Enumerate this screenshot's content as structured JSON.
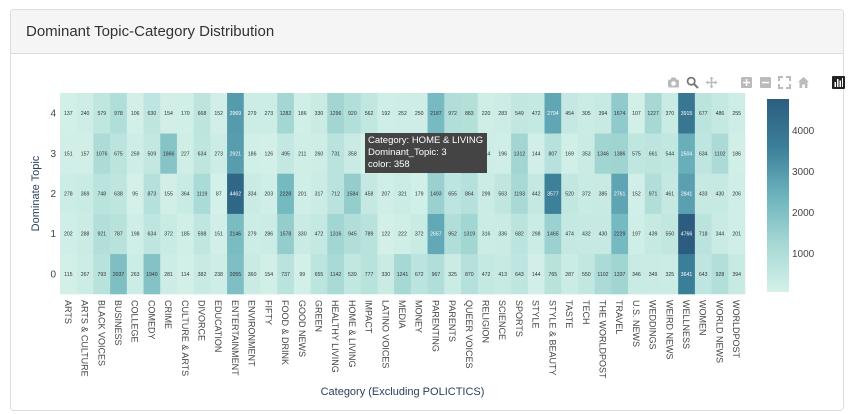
{
  "panel": {
    "title": "Dominant Topic-Category Distribution"
  },
  "modebar": {
    "icons": [
      "camera-icon",
      "zoom-icon",
      "pan-icon",
      "zoom-in-icon",
      "zoom-out-icon",
      "autoscale-icon",
      "home-icon",
      "plotly-logo-icon"
    ]
  },
  "tooltip": {
    "category": "Category: HOME & LIVING",
    "topic": "Dominant_Topic: 3",
    "color": "color: 358"
  },
  "chart_data": {
    "type": "heatmap",
    "xlabel": "Category (Excluding POLICTICS)",
    "ylabel": "Dominate Topic",
    "categories": [
      "ARTS",
      "ARTS & CULTURE",
      "BLACK VOICES",
      "BUSINESS",
      "COLLEGE",
      "COMEDY",
      "CRIME",
      "CULTURE & ARTS",
      "DIVORCE",
      "EDUCATION",
      "ENTERTAINMENT",
      "ENVIRONMENT",
      "FIFTY",
      "FOOD & DRINK",
      "GOOD NEWS",
      "GREEN",
      "HEALTHY LIVING",
      "HOME & LIVING",
      "IMPACT",
      "LATINO VOICES",
      "MEDIA",
      "MONEY",
      "PARENTING",
      "PARENTS",
      "QUEER VOICES",
      "RELIGION",
      "SCIENCE",
      "SPORTS",
      "STYLE",
      "STYLE & BEAUTY",
      "TASTE",
      "TECH",
      "THE WORLDPOST",
      "TRAVEL",
      "U.S. NEWS",
      "WEDDINGS",
      "WEIRD NEWS",
      "WELLNESS",
      "WOMEN",
      "WORLD NEWS",
      "WORLDPOST"
    ],
    "topics": [
      0,
      1,
      2,
      3,
      4
    ],
    "values": [
      [
        115,
        267,
        793,
        2037,
        263,
        1940,
        281,
        114,
        382,
        238,
        2055,
        360,
        154,
        737,
        99,
        655,
        1142,
        539,
        777,
        330,
        1241,
        672,
        967,
        325,
        870,
        472,
        413,
        643,
        144,
        765,
        287,
        550,
        1102,
        1337,
        346,
        349,
        325,
        3641,
        643,
        928,
        394
      ],
      [
        202,
        288,
        921,
        787,
        198,
        634,
        372,
        185,
        598,
        151,
        2146,
        279,
        286,
        1578,
        330,
        472,
        1316,
        945,
        789,
        122,
        222,
        372,
        2657,
        952,
        1319,
        316,
        336,
        682,
        298,
        1465,
        474,
        432,
        430,
        2229,
        197,
        439,
        550,
        4766,
        718,
        344,
        201
      ],
      [
        278,
        369,
        748,
        638,
        95,
        873,
        155,
        364,
        1119,
        87,
        4462,
        334,
        203,
        2228,
        201,
        317,
        712,
        1584,
        458,
        207,
        321,
        179,
        1493,
        655,
        864,
        299,
        563,
        1193,
        442,
        3577,
        520,
        372,
        385,
        2761,
        152,
        971,
        461,
        2841,
        433,
        430,
        206
      ],
      [
        151,
        157,
        1076,
        675,
        259,
        509,
        1866,
        227,
        634,
        273,
        2921,
        186,
        126,
        495,
        211,
        260,
        731,
        358,
        80,
        69,
        174,
        190,
        1740,
        342,
        1109,
        244,
        196,
        1312,
        144,
        807,
        169,
        353,
        1346,
        1386,
        575,
        661,
        544,
        2504,
        634,
        1102,
        186
      ],
      [
        137,
        240,
        579,
        978,
        106,
        630,
        154,
        170,
        668,
        152,
        2969,
        279,
        273,
        1282,
        186,
        330,
        1296,
        920,
        562,
        192,
        252,
        250,
        2187,
        972,
        883,
        220,
        283,
        549,
        472,
        2704,
        454,
        305,
        394,
        1674,
        107,
        1227,
        370,
        3915,
        677,
        486,
        255
      ]
    ],
    "zrange": [
      69,
      4766
    ],
    "colorbar_ticks": [
      1000,
      2000,
      3000,
      4000
    ],
    "colorscale": [
      "#d4f1e9",
      "#a6d8d4",
      "#6cb3bd",
      "#3c7f99",
      "#2c5d80"
    ],
    "grid": false
  }
}
